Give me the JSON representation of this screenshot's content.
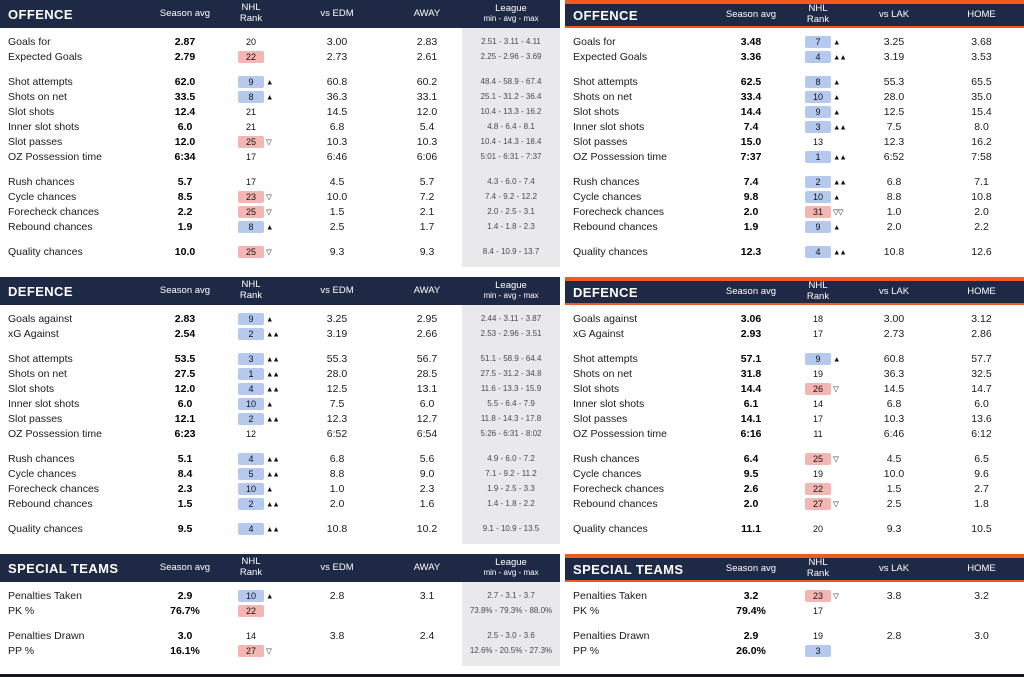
{
  "colors": {
    "header_bg": "#1d2945",
    "accent_orange": "#f05a1e",
    "rank_good_bg": "#b5c9ee",
    "rank_bad_bg": "#f3b6b2",
    "league_col_bg": "#e9e9eb"
  },
  "chart_data": [
    {
      "type": "table",
      "panel": "left",
      "headers": {
        "season": "Season avg",
        "rank": [
          "NHL",
          "Rank"
        ],
        "vs": "vs EDM",
        "site": "AWAY",
        "league": [
          "League",
          "min - avg - max"
        ]
      },
      "sections": [
        {
          "title": "OFFENCE",
          "groups": [
            [
              {
                "label": "Goals for",
                "season": "2.87",
                "rank": "20",
                "rank_color": "",
                "arrow": "",
                "vs": "3.00",
                "site": "2.83",
                "league": "2.51 - 3.11 - 4.11"
              },
              {
                "label": "Expected Goals",
                "season": "2.79",
                "rank": "22",
                "rank_color": "pink",
                "arrow": "",
                "vs": "2.73",
                "site": "2.61",
                "league": "2.25 - 2.96 - 3.69"
              }
            ],
            [
              {
                "label": "Shot attempts",
                "season": "62.0",
                "rank": "9",
                "rank_color": "blue",
                "arrow": "▲",
                "vs": "60.8",
                "site": "60.2",
                "league": "48.4 - 58.9 - 67.4"
              },
              {
                "label": "Shots on net",
                "season": "33.5",
                "rank": "8",
                "rank_color": "blue",
                "arrow": "▲",
                "vs": "36.3",
                "site": "33.1",
                "league": "25.1 - 31.2 - 36.4"
              },
              {
                "label": "Slot shots",
                "season": "12.4",
                "rank": "21",
                "rank_color": "",
                "arrow": "",
                "vs": "14.5",
                "site": "12.0",
                "league": "10.4 - 13.3 - 16.2"
              },
              {
                "label": "Inner slot shots",
                "season": "6.0",
                "rank": "21",
                "rank_color": "",
                "arrow": "",
                "vs": "6.8",
                "site": "5.4",
                "league": "4.8 - 6.4 - 8.1"
              },
              {
                "label": "Slot passes",
                "season": "12.0",
                "rank": "25",
                "rank_color": "pink",
                "arrow": "▽",
                "vs": "10.3",
                "site": "10.3",
                "league": "10.4 - 14.3 - 18.4"
              },
              {
                "label": "OZ Possession time",
                "season": "6:34",
                "rank": "17",
                "rank_color": "",
                "arrow": "",
                "vs": "6:46",
                "site": "6:06",
                "league": "5:01 - 6:31 - 7:37"
              }
            ],
            [
              {
                "label": "Rush chances",
                "season": "5.7",
                "rank": "17",
                "rank_color": "",
                "arrow": "",
                "vs": "4.5",
                "site": "5.7",
                "league": "4.3 - 6.0 - 7.4"
              },
              {
                "label": "Cycle chances",
                "season": "8.5",
                "rank": "23",
                "rank_color": "pink",
                "arrow": "▽",
                "vs": "10.0",
                "site": "7.2",
                "league": "7.4 - 9.2 - 12.2"
              },
              {
                "label": "Forecheck chances",
                "season": "2.2",
                "rank": "25",
                "rank_color": "pink",
                "arrow": "▽",
                "vs": "1.5",
                "site": "2.1",
                "league": "2.0 - 2.5 - 3.1"
              },
              {
                "label": "Rebound chances",
                "season": "1.9",
                "rank": "8",
                "rank_color": "blue",
                "arrow": "▲",
                "vs": "2.5",
                "site": "1.7",
                "league": "1.4 - 1.8 - 2.3"
              }
            ],
            [
              {
                "label": "Quality chances",
                "season": "10.0",
                "rank": "25",
                "rank_color": "pink",
                "arrow": "▽",
                "vs": "9.3",
                "site": "9.3",
                "league": "8.4 - 10.9 - 13.7"
              }
            ]
          ]
        },
        {
          "title": "DEFENCE",
          "groups": [
            [
              {
                "label": "Goals against",
                "season": "2.83",
                "rank": "9",
                "rank_color": "blue",
                "arrow": "▲",
                "vs": "3.25",
                "site": "2.95",
                "league": "2.44 - 3.11 - 3.87"
              },
              {
                "label": "xG Against",
                "season": "2.54",
                "rank": "2",
                "rank_color": "blue",
                "arrow": "▲▲",
                "vs": "3.19",
                "site": "2.66",
                "league": "2.53 - 2.96 - 3.51"
              }
            ],
            [
              {
                "label": "Shot attempts",
                "season": "53.5",
                "rank": "3",
                "rank_color": "blue",
                "arrow": "▲▲",
                "vs": "55.3",
                "site": "56.7",
                "league": "51.1 - 58.9 - 64.4"
              },
              {
                "label": "Shots on net",
                "season": "27.5",
                "rank": "1",
                "rank_color": "blue",
                "arrow": "▲▲",
                "vs": "28.0",
                "site": "28.5",
                "league": "27.5 - 31.2 - 34.8"
              },
              {
                "label": "Slot shots",
                "season": "12.0",
                "rank": "4",
                "rank_color": "blue",
                "arrow": "▲▲",
                "vs": "12.5",
                "site": "13.1",
                "league": "11.6 - 13.3 - 15.9"
              },
              {
                "label": "Inner slot shots",
                "season": "6.0",
                "rank": "10",
                "rank_color": "blue",
                "arrow": "▲",
                "vs": "7.5",
                "site": "6.0",
                "league": "5.5 - 6.4 - 7.9"
              },
              {
                "label": "Slot passes",
                "season": "12.1",
                "rank": "2",
                "rank_color": "blue",
                "arrow": "▲▲",
                "vs": "12.3",
                "site": "12.7",
                "league": "11.8 - 14.3 - 17.8"
              },
              {
                "label": "OZ Possession time",
                "season": "6:23",
                "rank": "12",
                "rank_color": "",
                "arrow": "",
                "vs": "6:52",
                "site": "6:54",
                "league": "5:26 - 6:31 - 8:02"
              }
            ],
            [
              {
                "label": "Rush chances",
                "season": "5.1",
                "rank": "4",
                "rank_color": "blue",
                "arrow": "▲▲",
                "vs": "6.8",
                "site": "5.6",
                "league": "4.9 - 6.0 - 7.2"
              },
              {
                "label": "Cycle chances",
                "season": "8.4",
                "rank": "5",
                "rank_color": "blue",
                "arrow": "▲▲",
                "vs": "8.8",
                "site": "9.0",
                "league": "7.1 - 9.2 - 11.2"
              },
              {
                "label": "Forecheck chances",
                "season": "2.3",
                "rank": "10",
                "rank_color": "blue",
                "arrow": "▲",
                "vs": "1.0",
                "site": "2.3",
                "league": "1.9 - 2.5 - 3.3"
              },
              {
                "label": "Rebound chances",
                "season": "1.5",
                "rank": "2",
                "rank_color": "blue",
                "arrow": "▲▲",
                "vs": "2.0",
                "site": "1.6",
                "league": "1.4 - 1.8 - 2.2"
              }
            ],
            [
              {
                "label": "Quality chances",
                "season": "9.5",
                "rank": "4",
                "rank_color": "blue",
                "arrow": "▲▲",
                "vs": "10.8",
                "site": "10.2",
                "league": "9.1 - 10.9 - 13.5"
              }
            ]
          ]
        },
        {
          "title": "SPECIAL TEAMS",
          "groups": [
            [
              {
                "label": "Penalties Taken",
                "season": "2.9",
                "rank": "10",
                "rank_color": "blue",
                "arrow": "▲",
                "vs": "2.8",
                "site": "3.1",
                "league": "2.7 - 3.1 - 3.7"
              },
              {
                "label": "PK %",
                "season": "76.7%",
                "rank": "22",
                "rank_color": "pink",
                "arrow": "",
                "vs": "",
                "site": "",
                "league": "73.8% - 79.3% - 88.0%"
              }
            ],
            [
              {
                "label": "Penalties Drawn",
                "season": "3.0",
                "rank": "14",
                "rank_color": "",
                "arrow": "",
                "vs": "3.8",
                "site": "2.4",
                "league": "2.5 - 3.0 - 3.6"
              },
              {
                "label": "PP %",
                "season": "16.1%",
                "rank": "27",
                "rank_color": "pink",
                "arrow": "▽",
                "vs": "",
                "site": "",
                "league": "12.6% - 20.5% - 27.3%"
              }
            ]
          ]
        }
      ]
    },
    {
      "type": "table",
      "panel": "right",
      "headers": {
        "season": "Season avg",
        "rank": [
          "NHL",
          "Rank"
        ],
        "vs": "vs LAK",
        "site": "HOME",
        "league": null
      },
      "sections": [
        {
          "title": "OFFENCE",
          "groups": [
            [
              {
                "label": "Goals for",
                "season": "3.48",
                "rank": "7",
                "rank_color": "blue",
                "arrow": "▲",
                "vs": "3.25",
                "site": "3.68"
              },
              {
                "label": "Expected Goals",
                "season": "3.36",
                "rank": "4",
                "rank_color": "blue",
                "arrow": "▲▲",
                "vs": "3.19",
                "site": "3.53"
              }
            ],
            [
              {
                "label": "Shot attempts",
                "season": "62.5",
                "rank": "8",
                "rank_color": "blue",
                "arrow": "▲",
                "vs": "55.3",
                "site": "65.5"
              },
              {
                "label": "Shots on net",
                "season": "33.4",
                "rank": "10",
                "rank_color": "blue",
                "arrow": "▲",
                "vs": "28.0",
                "site": "35.0"
              },
              {
                "label": "Slot shots",
                "season": "14.4",
                "rank": "9",
                "rank_color": "blue",
                "arrow": "▲",
                "vs": "12.5",
                "site": "15.4"
              },
              {
                "label": "Inner slot shots",
                "season": "7.4",
                "rank": "3",
                "rank_color": "blue",
                "arrow": "▲▲",
                "vs": "7.5",
                "site": "8.0"
              },
              {
                "label": "Slot passes",
                "season": "15.0",
                "rank": "13",
                "rank_color": "",
                "arrow": "",
                "vs": "12.3",
                "site": "16.2"
              },
              {
                "label": "OZ Possession time",
                "season": "7:37",
                "rank": "1",
                "rank_color": "blue",
                "arrow": "▲▲",
                "vs": "6:52",
                "site": "7:58"
              }
            ],
            [
              {
                "label": "Rush chances",
                "season": "7.4",
                "rank": "2",
                "rank_color": "blue",
                "arrow": "▲▲",
                "vs": "6.8",
                "site": "7.1"
              },
              {
                "label": "Cycle chances",
                "season": "9.8",
                "rank": "10",
                "rank_color": "blue",
                "arrow": "▲",
                "vs": "8.8",
                "site": "10.8"
              },
              {
                "label": "Forecheck chances",
                "season": "2.0",
                "rank": "31",
                "rank_color": "pink",
                "arrow": "▽▽",
                "vs": "1.0",
                "site": "2.0"
              },
              {
                "label": "Rebound chances",
                "season": "1.9",
                "rank": "9",
                "rank_color": "blue",
                "arrow": "▲",
                "vs": "2.0",
                "site": "2.2"
              }
            ],
            [
              {
                "label": "Quality chances",
                "season": "12.3",
                "rank": "4",
                "rank_color": "blue",
                "arrow": "▲▲",
                "vs": "10.8",
                "site": "12.6"
              }
            ]
          ]
        },
        {
          "title": "DEFENCE",
          "groups": [
            [
              {
                "label": "Goals against",
                "season": "3.06",
                "rank": "18",
                "rank_color": "",
                "arrow": "",
                "vs": "3.00",
                "site": "3.12"
              },
              {
                "label": "xG Against",
                "season": "2.93",
                "rank": "17",
                "rank_color": "",
                "arrow": "",
                "vs": "2.73",
                "site": "2.86"
              }
            ],
            [
              {
                "label": "Shot attempts",
                "season": "57.1",
                "rank": "9",
                "rank_color": "blue",
                "arrow": "▲",
                "vs": "60.8",
                "site": "57.7"
              },
              {
                "label": "Shots on net",
                "season": "31.8",
                "rank": "19",
                "rank_color": "",
                "arrow": "",
                "vs": "36.3",
                "site": "32.5"
              },
              {
                "label": "Slot shots",
                "season": "14.4",
                "rank": "26",
                "rank_color": "pink",
                "arrow": "▽",
                "vs": "14.5",
                "site": "14.7"
              },
              {
                "label": "Inner slot shots",
                "season": "6.1",
                "rank": "14",
                "rank_color": "",
                "arrow": "",
                "vs": "6.8",
                "site": "6.0"
              },
              {
                "label": "Slot passes",
                "season": "14.1",
                "rank": "17",
                "rank_color": "",
                "arrow": "",
                "vs": "10.3",
                "site": "13.6"
              },
              {
                "label": "OZ Possession time",
                "season": "6:16",
                "rank": "11",
                "rank_color": "",
                "arrow": "",
                "vs": "6:46",
                "site": "6:12"
              }
            ],
            [
              {
                "label": "Rush chances",
                "season": "6.4",
                "rank": "25",
                "rank_color": "pink",
                "arrow": "▽",
                "vs": "4.5",
                "site": "6.5"
              },
              {
                "label": "Cycle chances",
                "season": "9.5",
                "rank": "19",
                "rank_color": "",
                "arrow": "",
                "vs": "10.0",
                "site": "9.6"
              },
              {
                "label": "Forecheck chances",
                "season": "2.6",
                "rank": "22",
                "rank_color": "pink",
                "arrow": "",
                "vs": "1.5",
                "site": "2.7"
              },
              {
                "label": "Rebound chances",
                "season": "2.0",
                "rank": "27",
                "rank_color": "pink",
                "arrow": "▽",
                "vs": "2.5",
                "site": "1.8"
              }
            ],
            [
              {
                "label": "Quality chances",
                "season": "11.1",
                "rank": "20",
                "rank_color": "",
                "arrow": "",
                "vs": "9.3",
                "site": "10.5"
              }
            ]
          ]
        },
        {
          "title": "SPECIAL TEAMS",
          "groups": [
            [
              {
                "label": "Penalties Taken",
                "season": "3.2",
                "rank": "23",
                "rank_color": "pink",
                "arrow": "▽",
                "vs": "3.8",
                "site": "3.2"
              },
              {
                "label": "PK %",
                "season": "79.4%",
                "rank": "17",
                "rank_color": "",
                "arrow": "",
                "vs": "",
                "site": ""
              }
            ],
            [
              {
                "label": "Penalties Drawn",
                "season": "2.9",
                "rank": "19",
                "rank_color": "",
                "arrow": "",
                "vs": "2.8",
                "site": "3.0"
              },
              {
                "label": "PP %",
                "season": "26.0%",
                "rank": "3",
                "rank_color": "blue",
                "arrow": "",
                "vs": "",
                "site": ""
              }
            ]
          ]
        }
      ]
    }
  ]
}
